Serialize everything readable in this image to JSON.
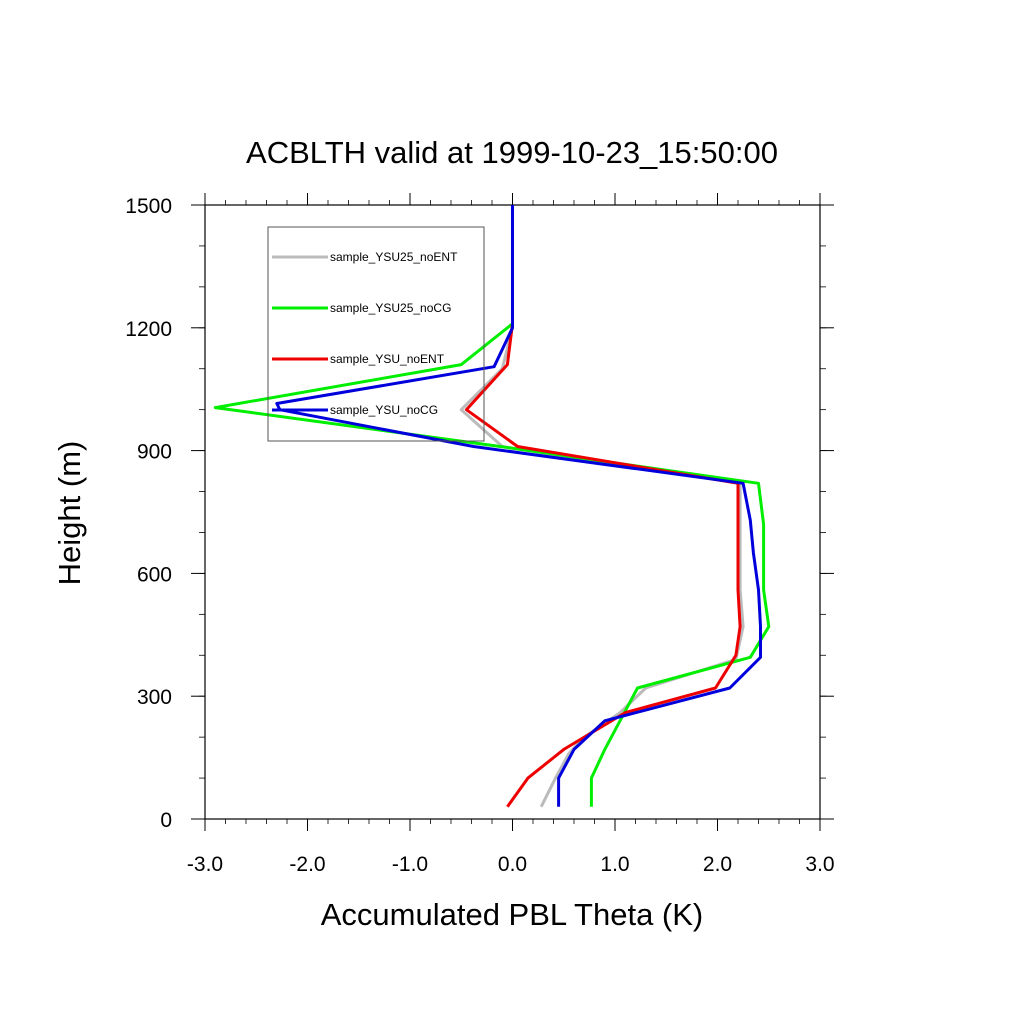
{
  "chart_data": {
    "type": "line",
    "title": "ACBLTH valid at 1999-10-23_15:50:00",
    "xlabel": "Accumulated PBL Theta (K)",
    "ylabel": "Height (m)",
    "xlim": [
      -3.0,
      3.0
    ],
    "ylim": [
      0,
      1500
    ],
    "x_ticks": [
      -3.0,
      -2.0,
      -1.0,
      0.0,
      1.0,
      2.0,
      3.0
    ],
    "x_tick_labels": [
      "-3.0",
      "-2.0",
      "-1.0",
      "0.0",
      "1.0",
      "2.0",
      "3.0"
    ],
    "y_ticks": [
      0,
      300,
      600,
      900,
      1200,
      1500
    ],
    "y_tick_labels": [
      "0",
      "300",
      "600",
      "900",
      "1200",
      "1500"
    ],
    "grid": false,
    "legend_position": "top-left",
    "series": [
      {
        "name": "sample_YSU25_noENT",
        "color": "#bbbbbb",
        "points": [
          [
            0.28,
            30
          ],
          [
            0.42,
            100
          ],
          [
            0.55,
            160
          ],
          [
            0.7,
            200
          ],
          [
            1.05,
            260
          ],
          [
            1.3,
            320
          ],
          [
            2.18,
            390
          ],
          [
            2.25,
            470
          ],
          [
            2.22,
            560
          ],
          [
            2.22,
            650
          ],
          [
            2.22,
            740
          ],
          [
            2.22,
            820
          ],
          [
            -0.1,
            910
          ],
          [
            -0.5,
            1000
          ],
          [
            -0.1,
            1100
          ],
          [
            0.0,
            1200
          ],
          [
            0.0,
            1300
          ],
          [
            0.0,
            1400
          ],
          [
            0.0,
            1500
          ]
        ]
      },
      {
        "name": "sample_YSU25_noCG",
        "color": "#00ee00",
        "points": [
          [
            0.77,
            30
          ],
          [
            0.77,
            100
          ],
          [
            0.9,
            170
          ],
          [
            1.22,
            320
          ],
          [
            2.32,
            395
          ],
          [
            2.5,
            470
          ],
          [
            2.45,
            560
          ],
          [
            2.45,
            650
          ],
          [
            2.45,
            720
          ],
          [
            2.4,
            820
          ],
          [
            -0.12,
            910
          ],
          [
            -2.9,
            1005
          ],
          [
            -0.5,
            1110
          ],
          [
            0.0,
            1210
          ],
          [
            0.0,
            1300
          ],
          [
            0.0,
            1400
          ],
          [
            0.0,
            1500
          ]
        ]
      },
      {
        "name": "sample_YSU_noENT",
        "color": "#ee0000",
        "points": [
          [
            -0.05,
            30
          ],
          [
            0.15,
            100
          ],
          [
            0.5,
            170
          ],
          [
            1.1,
            260
          ],
          [
            1.98,
            320
          ],
          [
            2.18,
            400
          ],
          [
            2.22,
            470
          ],
          [
            2.2,
            560
          ],
          [
            2.2,
            650
          ],
          [
            2.2,
            740
          ],
          [
            2.2,
            820
          ],
          [
            0.05,
            910
          ],
          [
            -0.45,
            1000
          ],
          [
            -0.05,
            1110
          ],
          [
            0.0,
            1210
          ],
          [
            0.0,
            1300
          ],
          [
            0.0,
            1400
          ],
          [
            0.0,
            1500
          ]
        ]
      },
      {
        "name": "sample_YSU_noCG",
        "color": "#0000dd",
        "points": [
          [
            0.45,
            30
          ],
          [
            0.45,
            100
          ],
          [
            0.6,
            170
          ],
          [
            0.9,
            240
          ],
          [
            2.12,
            320
          ],
          [
            2.42,
            395
          ],
          [
            2.42,
            470
          ],
          [
            2.4,
            560
          ],
          [
            2.35,
            650
          ],
          [
            2.32,
            730
          ],
          [
            2.25,
            820
          ],
          [
            -0.38,
            910
          ],
          [
            -2.27,
            1000
          ],
          [
            -2.3,
            1015
          ],
          [
            -0.18,
            1105
          ],
          [
            0.0,
            1200
          ],
          [
            0.0,
            1300
          ],
          [
            0.0,
            1400
          ],
          [
            0.0,
            1500
          ]
        ]
      }
    ]
  }
}
